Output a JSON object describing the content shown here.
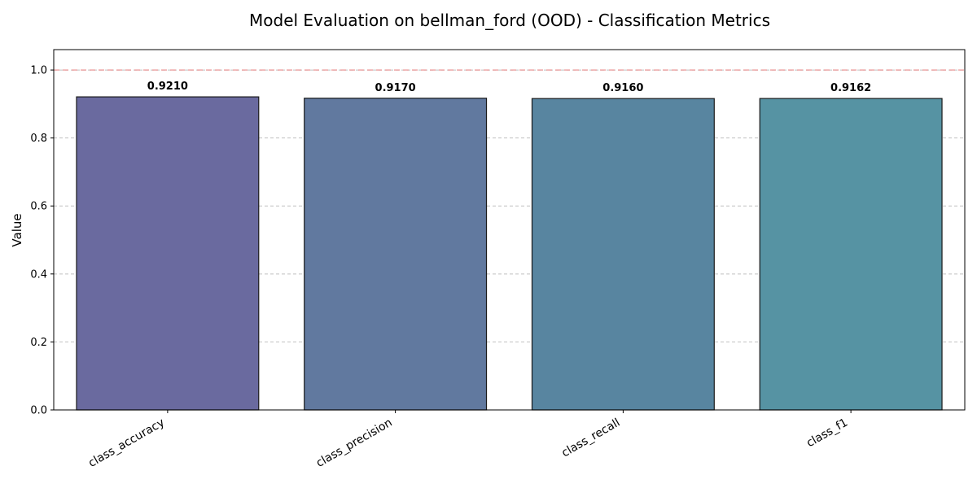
{
  "chart_data": {
    "type": "bar",
    "title": "Model Evaluation on bellman_ford (OOD) - Classification Metrics",
    "xlabel": "",
    "ylabel": "Value",
    "categories": [
      "class_accuracy",
      "class_precision",
      "class_recall",
      "class_f1"
    ],
    "values": [
      0.921,
      0.917,
      0.916,
      0.9162
    ],
    "data_labels": [
      "0.9210",
      "0.9170",
      "0.9160",
      "0.9162"
    ],
    "bar_colors": [
      "#6a6a9f",
      "#61799f",
      "#5885a0",
      "#5693a3"
    ],
    "ylim": [
      0,
      1.06
    ],
    "yticks": [
      0.0,
      0.2,
      0.4,
      0.6,
      0.8,
      1.0
    ],
    "ytick_labels": [
      "0.0",
      "0.2",
      "0.4",
      "0.6",
      "0.8",
      "1.0"
    ],
    "reference_line": {
      "y": 1.0,
      "color": "#e88a8a",
      "style": "dashed"
    },
    "grid": {
      "y": true,
      "x": false,
      "style": "dashed",
      "color": "#c0c0c0"
    }
  }
}
